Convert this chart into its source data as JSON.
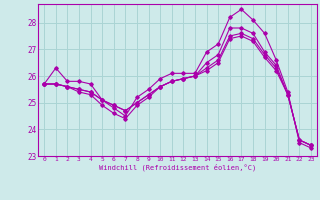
{
  "xlabel": "Windchill (Refroidissement éolien,°C)",
  "background_color": "#ceeaea",
  "grid_color": "#aad4d4",
  "line_color": "#aa00aa",
  "x": [
    0,
    1,
    2,
    3,
    4,
    5,
    6,
    7,
    8,
    9,
    10,
    11,
    12,
    13,
    14,
    15,
    16,
    17,
    18,
    19,
    20,
    21,
    22,
    23
  ],
  "line1": [
    25.7,
    26.3,
    25.8,
    25.8,
    25.7,
    25.1,
    24.8,
    24.5,
    25.2,
    25.5,
    25.9,
    26.1,
    26.1,
    26.1,
    26.9,
    27.2,
    28.2,
    28.5,
    28.1,
    27.6,
    26.6,
    25.4,
    23.5,
    23.3
  ],
  "line2": [
    25.7,
    25.7,
    25.6,
    25.5,
    25.4,
    25.1,
    24.9,
    24.7,
    25.0,
    25.3,
    25.6,
    25.8,
    25.9,
    26.0,
    26.5,
    26.8,
    27.8,
    27.8,
    27.6,
    26.9,
    26.4,
    25.3,
    23.6,
    23.4
  ],
  "line3": [
    25.7,
    25.7,
    25.6,
    25.5,
    25.4,
    25.1,
    24.9,
    24.7,
    25.0,
    25.3,
    25.6,
    25.8,
    25.9,
    26.0,
    26.3,
    26.6,
    27.5,
    27.6,
    27.4,
    26.8,
    26.3,
    25.3,
    23.6,
    23.4
  ],
  "line4": [
    25.7,
    25.7,
    25.6,
    25.4,
    25.3,
    24.9,
    24.6,
    24.4,
    24.9,
    25.2,
    25.6,
    25.8,
    25.9,
    26.0,
    26.2,
    26.5,
    27.4,
    27.5,
    27.3,
    26.7,
    26.2,
    25.3,
    23.6,
    23.4
  ],
  "ylim_min": 23.0,
  "ylim_max": 28.7,
  "yticks": [
    23,
    24,
    25,
    26,
    27,
    28
  ],
  "xticks": [
    0,
    1,
    2,
    3,
    4,
    5,
    6,
    7,
    8,
    9,
    10,
    11,
    12,
    13,
    14,
    15,
    16,
    17,
    18,
    19,
    20,
    21,
    22,
    23
  ]
}
